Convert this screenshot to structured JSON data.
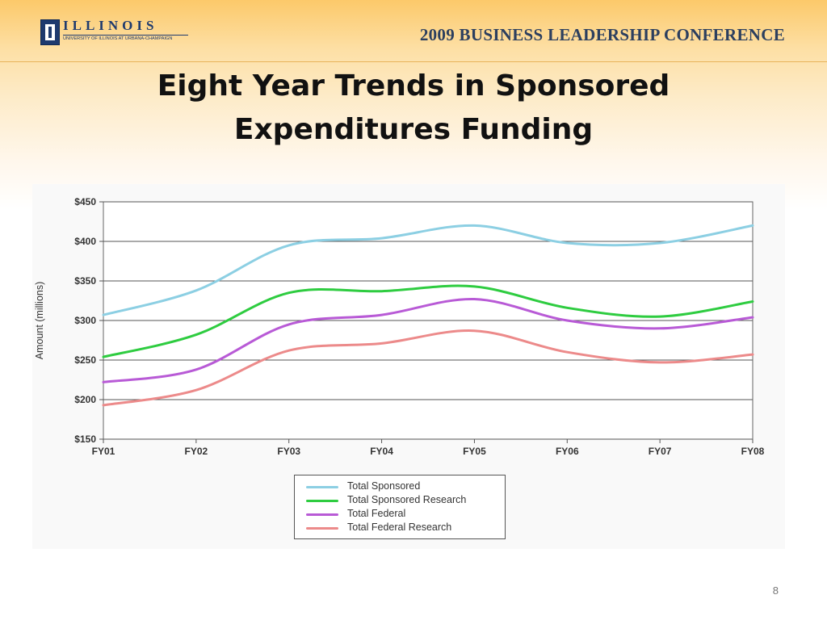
{
  "header": {
    "logo_word": "ILLINOIS",
    "logo_sub": "UNIVERSITY OF ILLINOIS AT URBANA-CHAMPAIGN",
    "conference": "2009 BUSINESS LEADERSHIP CONFERENCE"
  },
  "slide": {
    "title_line1": "Eight Year Trends in Sponsored",
    "title_line2": "Expenditures Funding",
    "page_number": "8"
  },
  "colors": {
    "total_sponsored": "#8ccfe3",
    "total_sponsored_research": "#2ecc40",
    "total_federal": "#b85ad6",
    "total_federal_research": "#ec8a8a"
  },
  "chart_data": {
    "type": "line",
    "title": "",
    "xlabel": "",
    "ylabel": "Amount (millions)",
    "categories": [
      "FY01",
      "FY02",
      "FY03",
      "FY04",
      "FY05",
      "FY06",
      "FY07",
      "FY08"
    ],
    "y_ticks": [
      "$150",
      "$200",
      "$250",
      "$300",
      "$350",
      "$400",
      "$450"
    ],
    "ylim": [
      150,
      450
    ],
    "grid": true,
    "legend_position": "bottom",
    "series": [
      {
        "name": "Total Sponsored",
        "values": [
          307,
          338,
          395,
          404,
          420,
          398,
          398,
          420
        ]
      },
      {
        "name": "Total Sponsored Research",
        "values": [
          254,
          282,
          335,
          337,
          343,
          316,
          305,
          324
        ]
      },
      {
        "name": "Total Federal",
        "values": [
          222,
          238,
          295,
          307,
          327,
          300,
          290,
          304
        ]
      },
      {
        "name": "Total Federal Research",
        "values": [
          193,
          212,
          262,
          271,
          287,
          260,
          247,
          257
        ]
      }
    ]
  }
}
